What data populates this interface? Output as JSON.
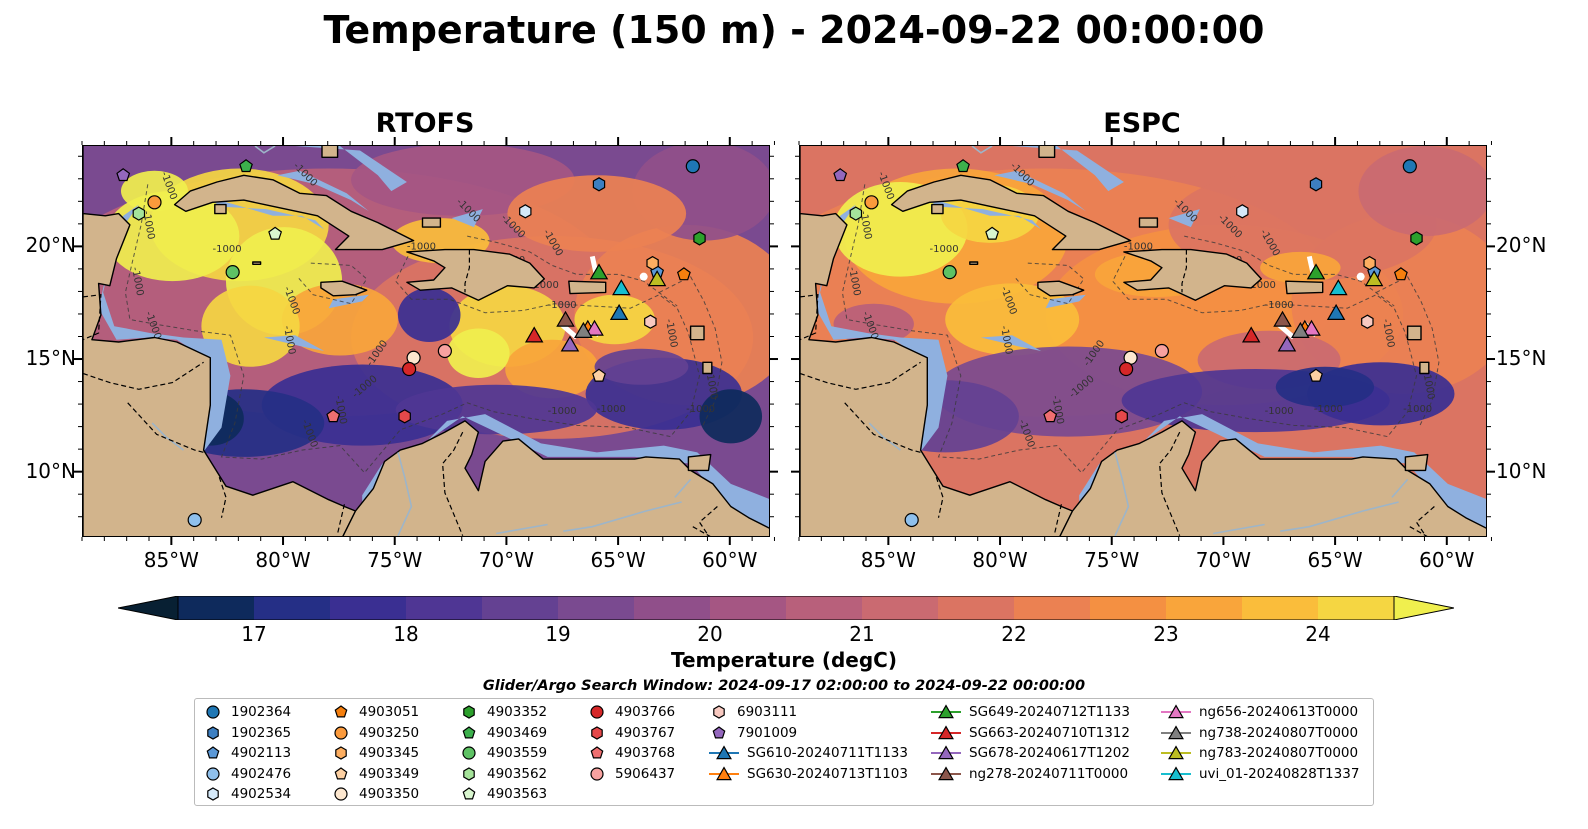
{
  "title": "Temperature (150 m) - 2024-09-22 00:00:00",
  "panels": [
    {
      "title": "RTOFS"
    },
    {
      "title": "ESPC"
    }
  ],
  "axes": {
    "x_ticks": [
      "85°W",
      "80°W",
      "75°W",
      "70°W",
      "65°W",
      "60°W"
    ],
    "y_ticks": [
      "20°N",
      "15°N",
      "10°N"
    ],
    "lon_range": [
      -89.0,
      -58.2
    ],
    "lat_range": [
      7.1,
      24.5
    ]
  },
  "colorbar": {
    "label": "Temperature (degC)",
    "ticks": [
      "17",
      "18",
      "19",
      "20",
      "21",
      "22",
      "23",
      "24"
    ],
    "range": [
      16.5,
      24.5
    ],
    "colors": [
      "#082033",
      "#0e2a5c",
      "#252f86",
      "#3a2f92",
      "#4f3694",
      "#644192",
      "#7a4a90",
      "#904f8a",
      "#a55683",
      "#b8607b",
      "#ca6a71",
      "#db7462",
      "#eb8152",
      "#f49042",
      "#f9a53b",
      "#fabd3b",
      "#f5d642",
      "#f0ef4e"
    ]
  },
  "colors": {
    "land": "#d2b48c",
    "shelf": "#8fb0df",
    "contour": "#444444"
  },
  "legend": {
    "title": "Glider/Argo Search Window: 2024-09-17 02:00:00 to 2024-09-22 00:00:00",
    "columns": [
      [
        {
          "label": "1902364",
          "marker": "circle",
          "color": "#1f77b4"
        },
        {
          "label": "1902365",
          "marker": "hexagon",
          "color": "#3d7fc1"
        },
        {
          "label": "4902113",
          "marker": "pentagon",
          "color": "#5b98d6"
        },
        {
          "label": "4902476",
          "marker": "circle",
          "color": "#8fc0ec"
        },
        {
          "label": "4902534",
          "marker": "hexagon",
          "color": "#d4e8f8"
        }
      ],
      [
        {
          "label": "4903051",
          "marker": "pentagon",
          "color": "#f57f0e"
        },
        {
          "label": "4903250",
          "marker": "circle",
          "color": "#fb9a3c"
        },
        {
          "label": "4903345",
          "marker": "hexagon",
          "color": "#fdae61"
        },
        {
          "label": "4903349",
          "marker": "pentagon",
          "color": "#fdd0a2"
        },
        {
          "label": "4903350",
          "marker": "circle",
          "color": "#fde7cf"
        }
      ],
      [
        {
          "label": "4903352",
          "marker": "hexagon",
          "color": "#2ca02c"
        },
        {
          "label": "4903469",
          "marker": "pentagon",
          "color": "#3cb04c"
        },
        {
          "label": "4903559",
          "marker": "circle",
          "color": "#5ec264"
        },
        {
          "label": "4903562",
          "marker": "hexagon",
          "color": "#a5e39a"
        },
        {
          "label": "4903563",
          "marker": "pentagon",
          "color": "#d9f6cf"
        }
      ],
      [
        {
          "label": "4903766",
          "marker": "circle",
          "color": "#d62728"
        },
        {
          "label": "4903767",
          "marker": "hexagon",
          "color": "#e5484a"
        },
        {
          "label": "4903768",
          "marker": "pentagon",
          "color": "#ef6f70"
        },
        {
          "label": "5906437",
          "marker": "circle",
          "color": "#f7a2a0"
        }
      ],
      [
        {
          "label": "6903111",
          "marker": "hexagon",
          "color": "#f8c9c0"
        },
        {
          "label": "7901009",
          "marker": "pentagon",
          "color": "#9467bd"
        },
        {
          "label": "SG610-20240711T1133",
          "marker": "triangle",
          "color": "#1f77b4"
        },
        {
          "label": "SG630-20240713T1103",
          "marker": "triangle",
          "color": "#ff7f0e"
        }
      ],
      [
        {
          "label": "SG649-20240712T1133",
          "marker": "triangle",
          "color": "#2ca02c"
        },
        {
          "label": "SG663-20240710T1312",
          "marker": "triangle",
          "color": "#d62728"
        },
        {
          "label": "SG678-20240617T1202",
          "marker": "triangle",
          "color": "#9467bd"
        },
        {
          "label": "ng278-20240711T0000",
          "marker": "triangle",
          "color": "#8c564b"
        }
      ],
      [
        {
          "label": "ng656-20240613T0000",
          "marker": "triangle",
          "color": "#e377c2"
        },
        {
          "label": "ng738-20240807T0000",
          "marker": "triangle",
          "color": "#7f7f7f"
        },
        {
          "label": "ng783-20240807T0000",
          "marker": "triangle",
          "color": "#bcbd22"
        },
        {
          "label": "uvi_01-20240828T1337",
          "marker": "triangle",
          "color": "#17becf"
        }
      ]
    ]
  },
  "markers": [
    {
      "id": "1902364",
      "lon": -61.7,
      "lat": 23.6
    },
    {
      "id": "1902365",
      "lon": -65.9,
      "lat": 22.8
    },
    {
      "id": "4902113",
      "lon": -63.3,
      "lat": 18.9
    },
    {
      "id": "4902476",
      "lon": -84.0,
      "lat": 7.9
    },
    {
      "id": "4902534",
      "lon": -69.2,
      "lat": 21.6
    },
    {
      "id": "4903051",
      "lon": -62.1,
      "lat": 18.8
    },
    {
      "id": "4903250",
      "lon": -85.8,
      "lat": 22.0
    },
    {
      "id": "4903345",
      "lon": -63.5,
      "lat": 19.3
    },
    {
      "id": "4903349",
      "lon": -65.9,
      "lat": 14.3
    },
    {
      "id": "4903350",
      "lon": -74.2,
      "lat": 15.1
    },
    {
      "id": "4903352",
      "lon": -61.4,
      "lat": 20.4
    },
    {
      "id": "4903469",
      "lon": -81.7,
      "lat": 23.6
    },
    {
      "id": "4903559",
      "lon": -82.3,
      "lat": 18.9
    },
    {
      "id": "4903562",
      "lon": -86.5,
      "lat": 21.5
    },
    {
      "id": "4903563",
      "lon": -80.4,
      "lat": 20.6
    },
    {
      "id": "4903766",
      "lon": -74.4,
      "lat": 14.6
    },
    {
      "id": "4903767",
      "lon": -74.6,
      "lat": 12.5
    },
    {
      "id": "4903768",
      "lon": -77.8,
      "lat": 12.5
    },
    {
      "id": "5906437",
      "lon": -72.8,
      "lat": 15.4
    },
    {
      "id": "6903111",
      "lon": -63.6,
      "lat": 16.7
    },
    {
      "id": "7901009",
      "lon": -87.2,
      "lat": 23.2
    },
    {
      "id": "SG610-20240711T1133",
      "lon": -65.0,
      "lat": 17.1
    },
    {
      "id": "SG630-20240713T1103",
      "lon": -66.4,
      "lat": 16.4
    },
    {
      "id": "SG649-20240712T1133",
      "lon": -65.9,
      "lat": 18.9
    },
    {
      "id": "SG663-20240710T1312",
      "lon": -68.8,
      "lat": 16.1
    },
    {
      "id": "SG678-20240617T1202",
      "lon": -67.2,
      "lat": 15.7
    },
    {
      "id": "ng278-20240711T0000",
      "lon": -67.4,
      "lat": 16.8
    },
    {
      "id": "ng656-20240613T0000",
      "lon": -66.1,
      "lat": 16.4
    },
    {
      "id": "ng738-20240807T0000",
      "lon": -66.6,
      "lat": 16.3
    },
    {
      "id": "ng783-20240807T0000",
      "lon": -63.3,
      "lat": 18.6
    },
    {
      "id": "uvi_01-20240828T1337",
      "lon": -64.9,
      "lat": 18.2
    }
  ]
}
